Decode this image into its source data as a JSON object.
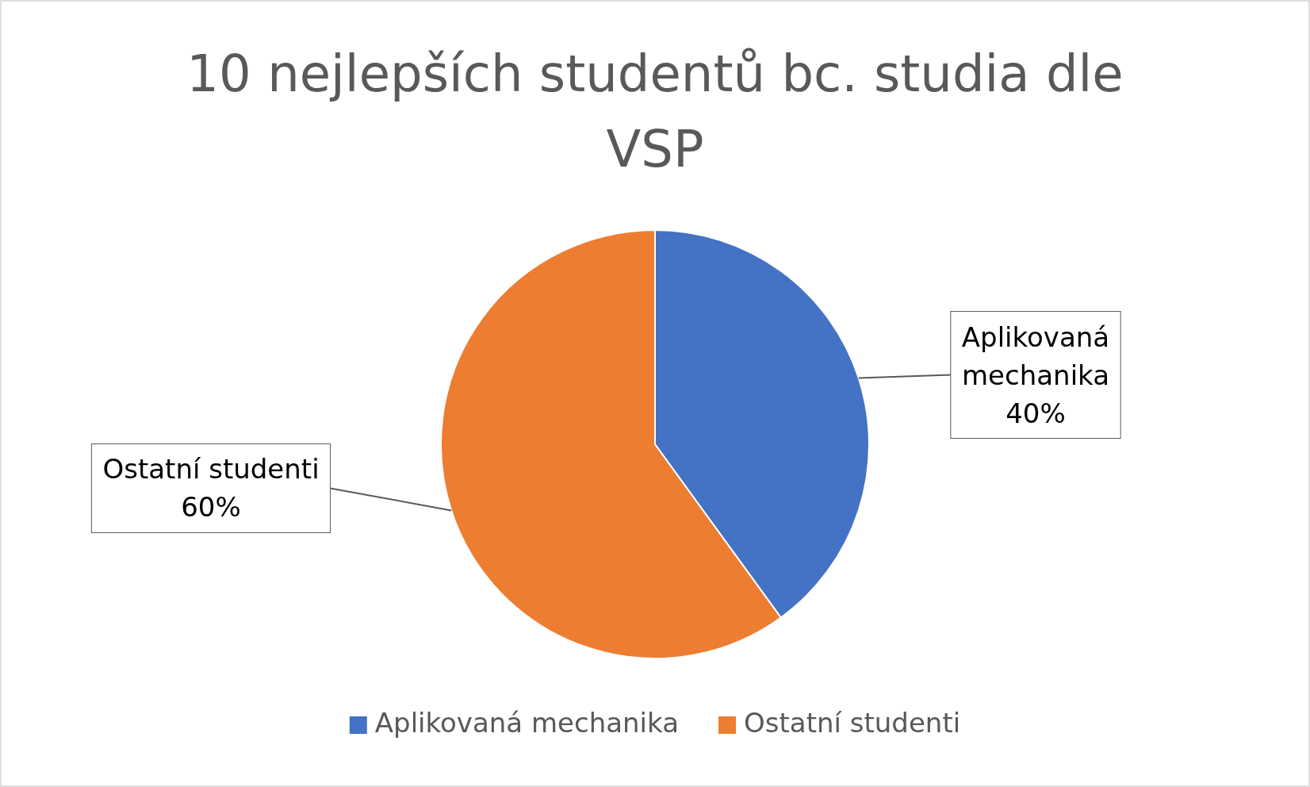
{
  "chart_data": {
    "type": "pie",
    "title": "10 nejlepších studentů bc. studia dle VSP",
    "categories": [
      "Aplikovaná mechanika",
      "Ostatní studenti"
    ],
    "values": [
      40,
      60
    ],
    "colors": [
      "#4472c4",
      "#ed7d31"
    ],
    "value_labels": [
      "40%",
      "60%"
    ],
    "legend": "bottom"
  }
}
